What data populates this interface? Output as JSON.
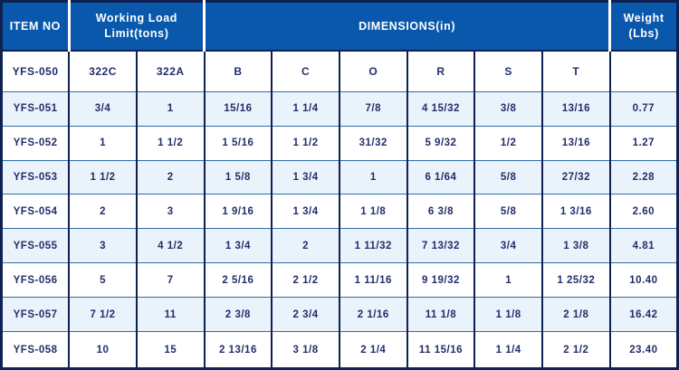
{
  "colors": {
    "header_bg": "#0a58ac",
    "header_text": "#ffffff",
    "border_navy": "#0e2152",
    "row_line": "#2e6ca5",
    "alt_row_bg": "#eaf3fb",
    "text_navy": "#232e6a",
    "page_bg": "#ffffff"
  },
  "chart_data": {
    "type": "table",
    "header": {
      "item_no": "ITEM NO",
      "working_load_line1": "Working Load",
      "working_load_line2": "Limit(tons)",
      "dimensions": "DIMENSIONS(in)",
      "weight_line1": "Weight",
      "weight_line2": "(Lbs)"
    },
    "columns": [
      "ITEM NO",
      "322C",
      "322A",
      "B",
      "C",
      "O",
      "R",
      "S",
      "T",
      "Weight (Lbs)"
    ],
    "sub_header_row": [
      "YFS-050",
      "322C",
      "322A",
      "B",
      "C",
      "O",
      "R",
      "S",
      "T",
      ""
    ],
    "data_rows": [
      [
        "YFS-051",
        "3/4",
        "1",
        "15/16",
        "1 1/4",
        "7/8",
        "4 15/32",
        "3/8",
        "13/16",
        "0.77"
      ],
      [
        "YFS-052",
        "1",
        "1 1/2",
        "1 5/16",
        "1 1/2",
        "31/32",
        "5 9/32",
        "1/2",
        "13/16",
        "1.27"
      ],
      [
        "YFS-053",
        "1 1/2",
        "2",
        "1 5/8",
        "1 3/4",
        "1",
        "6 1/64",
        "5/8",
        "27/32",
        "2.28"
      ],
      [
        "YFS-054",
        "2",
        "3",
        "1 9/16",
        "1 3/4",
        "1 1/8",
        "6 3/8",
        "5/8",
        "1 3/16",
        "2.60"
      ],
      [
        "YFS-055",
        "3",
        "4 1/2",
        "1 3/4",
        "2",
        "1 11/32",
        "7 13/32",
        "3/4",
        "1 3/8",
        "4.81"
      ],
      [
        "YFS-056",
        "5",
        "7",
        "2 5/16",
        "2 1/2",
        "1 11/16",
        "9 19/32",
        "1",
        "1 25/32",
        "10.40"
      ],
      [
        "YFS-057",
        "7 1/2",
        "11",
        "2 3/8",
        "2 3/4",
        "2 1/16",
        "11 1/8",
        "1 1/8",
        "2 1/8",
        "16.42"
      ],
      [
        "YFS-058",
        "10",
        "15",
        "2 13/16",
        "3 1/8",
        "2 1/4",
        "11 15/16",
        "1 1/4",
        "2 1/2",
        "23.40"
      ]
    ]
  }
}
